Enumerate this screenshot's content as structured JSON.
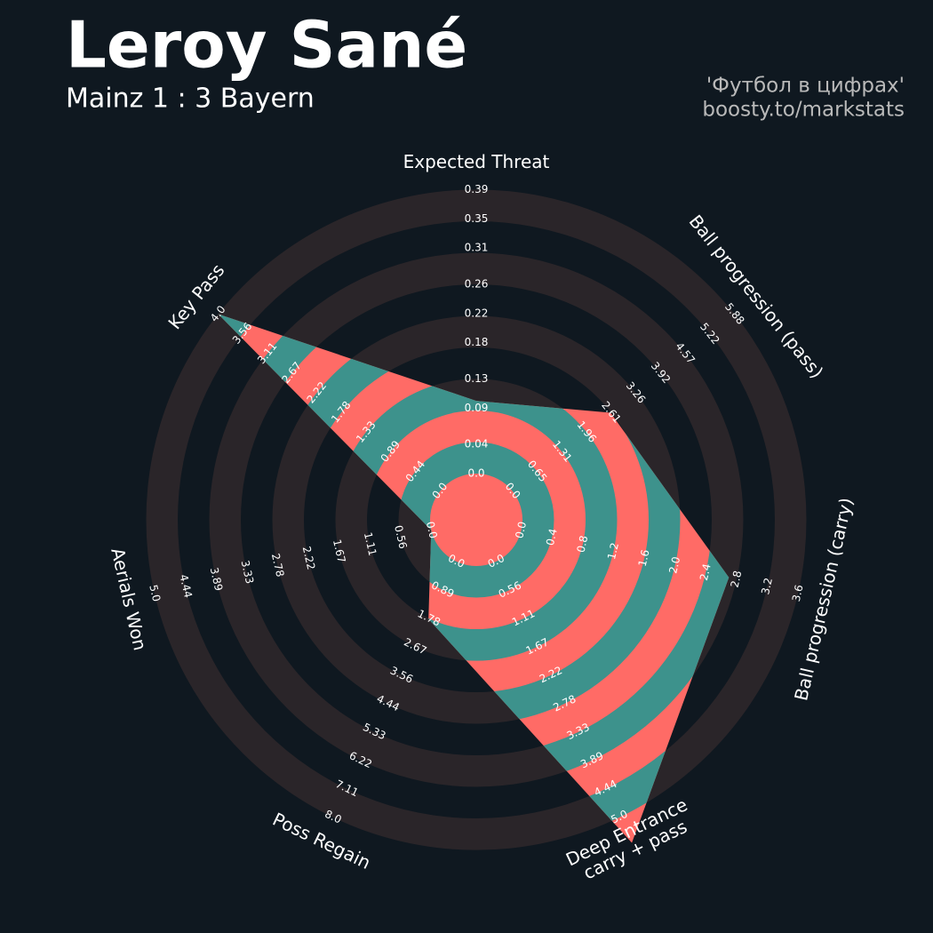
{
  "chart_data": {
    "type": "radar",
    "title": "Leroy Sané",
    "subtitle": "Mainz 1 : 3 Bayern",
    "credits": [
      "'Футбол в цифрах'",
      "boosty.to/markstats"
    ],
    "categories": [
      [
        "Expected Threat"
      ],
      [
        "Ball progression (pass)"
      ],
      [
        "Ball progression (carry)"
      ],
      [
        "Deep Entrance",
        "carry + pass"
      ],
      [
        "Poss Regain"
      ],
      [
        "Aerials Won"
      ],
      [
        "Key Pass"
      ]
    ],
    "values": [
      0.1,
      2.6,
      2.7,
      5.5,
      1.8,
      0,
      4.0
    ],
    "ranges": [
      {
        "lim": [
          0,
          0.39
        ],
        "ticks": [
          {
            "value": 0,
            "label": "0.0"
          },
          0.04,
          0.09,
          0.13,
          0.18,
          0.22,
          0.26,
          0.31,
          0.35,
          0.39
        ]
      },
      {
        "lim": [
          0,
          5.88
        ],
        "ticks": [
          {
            "value": 0,
            "label": "0.0"
          },
          0.65,
          1.31,
          1.96,
          2.61,
          3.26,
          3.92,
          4.57,
          5.22,
          5.88
        ]
      },
      {
        "lim": [
          0,
          3.6
        ],
        "ticks": [
          {
            "value": 0,
            "label": "0.0"
          },
          0.4,
          0.8,
          1.2,
          1.6,
          {
            "value": 2,
            "label": "2.0"
          },
          2.4,
          2.8,
          3.2,
          3.6
        ]
      },
      {
        "lim": [
          0,
          5
        ],
        "ticks": [
          {
            "value": 0,
            "label": "0.0"
          },
          0.56,
          1.11,
          1.67,
          2.22,
          2.78,
          3.33,
          3.89,
          4.44,
          {
            "value": 5,
            "label": "5.0"
          }
        ]
      },
      {
        "lim": [
          0,
          8
        ],
        "ticks": [
          {
            "value": 0,
            "label": "0.0"
          },
          0.89,
          1.78,
          2.67,
          3.56,
          4.44,
          5.33,
          6.22,
          7.11,
          {
            "value": 8,
            "label": "8.0"
          }
        ]
      },
      {
        "lim": [
          0,
          5
        ],
        "ticks": [
          {
            "value": 0,
            "label": "0.0"
          },
          0.56,
          1.11,
          1.67,
          2.22,
          2.78,
          3.33,
          3.89,
          4.44,
          {
            "value": 5,
            "label": "5.0"
          }
        ]
      },
      {
        "lim": [
          0,
          4
        ],
        "ticks": [
          {
            "value": 0,
            "label": "0.0"
          },
          0.44,
          0.89,
          1.33,
          1.78,
          2.22,
          2.67,
          3.11,
          3.56,
          {
            "value": 4,
            "label": "4.0"
          }
        ]
      }
    ],
    "colors": {
      "background": "#0f1820",
      "rings": "#2a2529",
      "inside": "#ff6b66",
      "inside_alt": "#3d928c"
    }
  }
}
